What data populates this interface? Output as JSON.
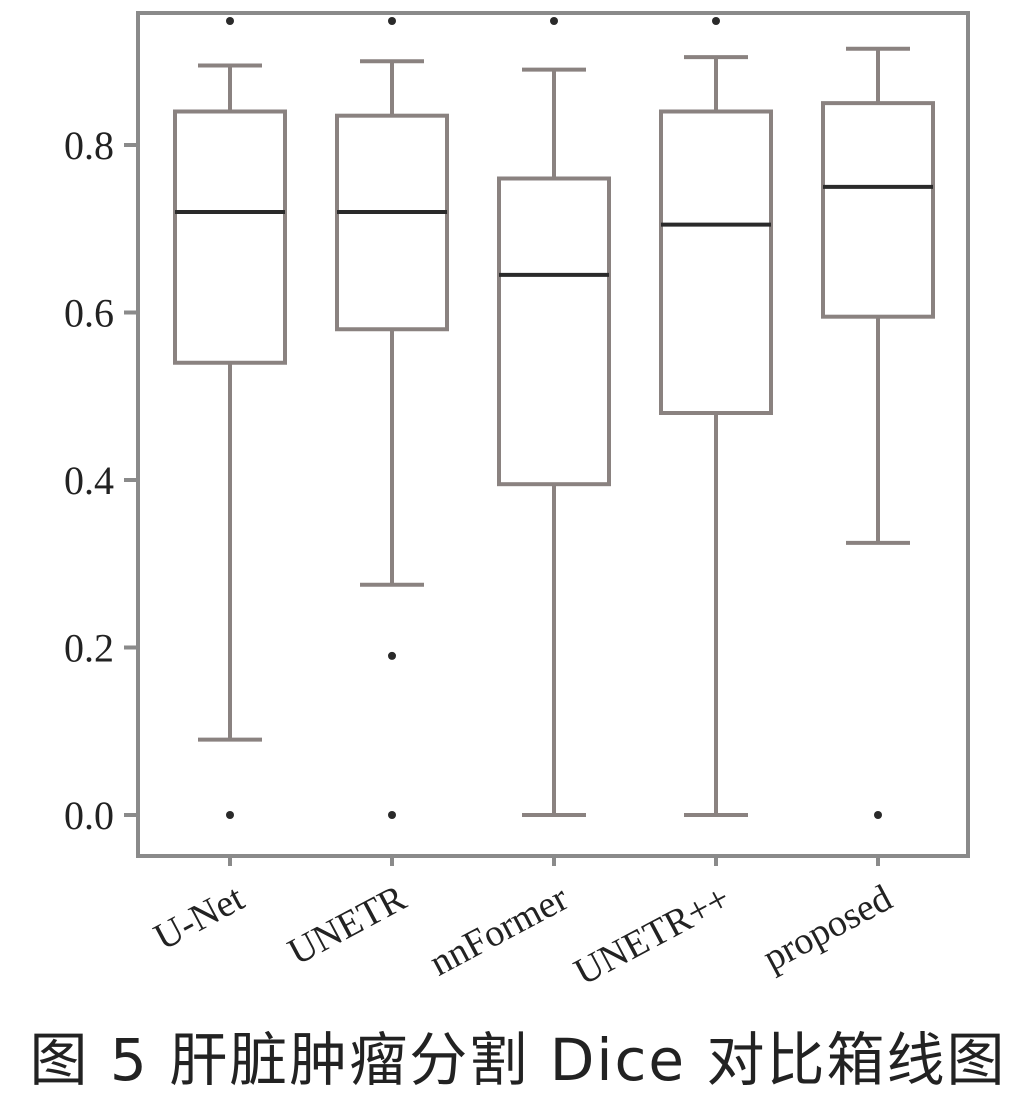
{
  "caption": "图 5 肝脏肿瘤分割 Dice 对比箱线图",
  "chart_data": {
    "type": "box",
    "title": "",
    "xlabel": "",
    "ylabel": "",
    "ylim": [
      -0.05,
      0.95
    ],
    "yticks": [
      0.0,
      0.2,
      0.4,
      0.6,
      0.8
    ],
    "ytick_labels": [
      "0.0",
      "0.2",
      "0.4",
      "0.6",
      "0.8"
    ],
    "categories": [
      "U-Net",
      "UNETR",
      "nnFormer",
      "UNETR++",
      "proposed"
    ],
    "boxes": [
      {
        "name": "U-Net",
        "whisker_low": 0.09,
        "q1": 0.54,
        "median": 0.72,
        "q3": 0.84,
        "whisker_high": 0.895,
        "outliers": [
          0.0,
          0.95
        ]
      },
      {
        "name": "UNETR",
        "whisker_low": 0.275,
        "q1": 0.58,
        "median": 0.72,
        "q3": 0.835,
        "whisker_high": 0.9,
        "outliers": [
          0.0,
          0.19,
          0.95
        ]
      },
      {
        "name": "nnFormer",
        "whisker_low": 0.0,
        "q1": 0.395,
        "median": 0.645,
        "q3": 0.76,
        "whisker_high": 0.89,
        "outliers": [
          0.95
        ]
      },
      {
        "name": "UNETR++",
        "whisker_low": 0.0,
        "q1": 0.48,
        "median": 0.705,
        "q3": 0.84,
        "whisker_high": 0.905,
        "outliers": [
          0.95
        ]
      },
      {
        "name": "proposed",
        "whisker_low": 0.325,
        "q1": 0.595,
        "median": 0.75,
        "q3": 0.85,
        "whisker_high": 0.915,
        "outliers": [
          0.0
        ]
      }
    ],
    "grid": false,
    "legend": "none",
    "colors": {
      "box": "#8a8280",
      "median": "#2a2a2a",
      "axis": "#8a8a8a",
      "outlier": "#2a2a2a"
    }
  }
}
